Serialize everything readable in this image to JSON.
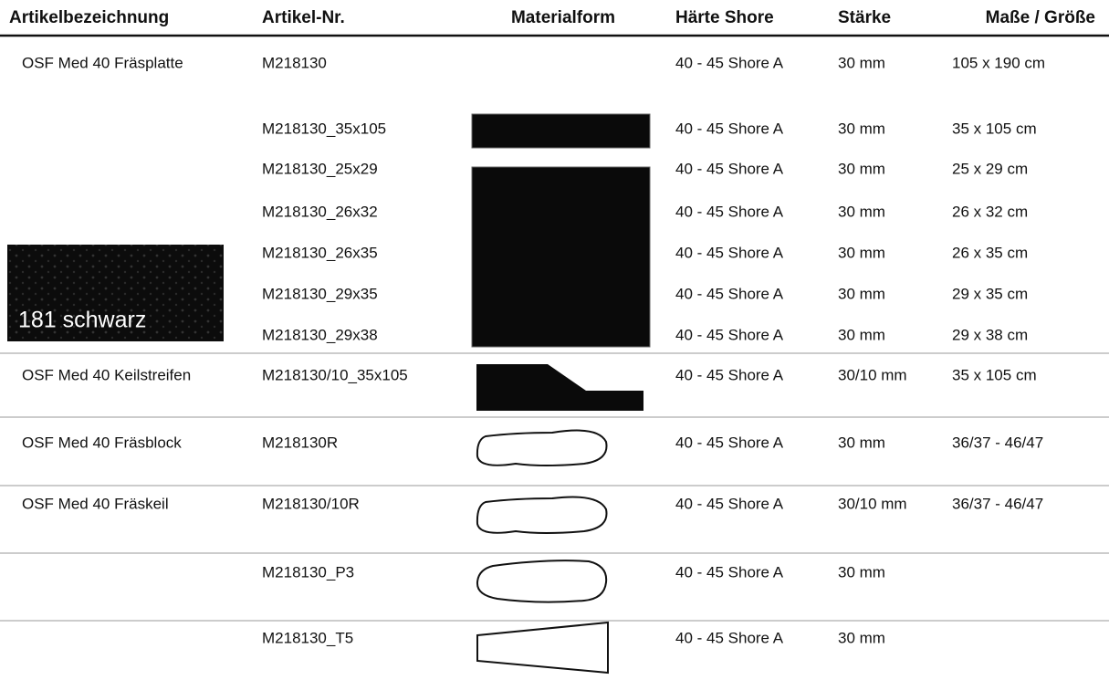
{
  "header": {
    "columns": [
      "Artikelbezeichnung",
      "Artikel-Nr.",
      "Materialform",
      "Härte Shore",
      "Stärke",
      "Maße / Größe"
    ]
  },
  "swatch": {
    "label": "181 schwarz"
  },
  "table": {
    "rows": [
      {
        "name": "OSF Med 40 Fräsplatte",
        "number": "M218130",
        "hardness": "40 - 45 Shore A",
        "thickness": "30 mm",
        "size": "105 x 190 cm"
      },
      {
        "number": "M218130_35x105",
        "hardness": "40 - 45 Shore A",
        "thickness": "30 mm",
        "size": "35 x 105 cm"
      },
      {
        "number": "M218130_25x29",
        "hardness": "40 - 45 Shore A",
        "thickness": "30 mm",
        "size": "25 x 29 cm"
      },
      {
        "number": "M218130_26x32",
        "hardness": "40 - 45 Shore A",
        "thickness": "30 mm",
        "size": "26 x 32 cm"
      },
      {
        "number": "M218130_26x35",
        "hardness": "40 - 45 Shore A",
        "thickness": "30 mm",
        "size": "26 x 35 cm"
      },
      {
        "number": "M218130_29x35",
        "hardness": "40 - 45 Shore A",
        "thickness": "30 mm",
        "size": "29 x 35 cm"
      },
      {
        "number": "M218130_29x38",
        "hardness": "40 - 45 Shore A",
        "thickness": "30 mm",
        "size": "29 x 38 cm"
      },
      {
        "name": "OSF Med 40 Keilstreifen",
        "number": "M218130/10_35x105",
        "hardness": "40 - 45 Shore A",
        "thickness": "30/10 mm",
        "size": "35 x 105 cm"
      },
      {
        "name": "OSF Med 40 Fräsblock",
        "number": "M218130R",
        "hardness": "40 - 45 Shore A",
        "thickness": "30 mm",
        "size": "36/37 - 46/47"
      },
      {
        "name": "OSF Med 40 Fräskeil",
        "number": "M218130/10R",
        "hardness": "40 - 45 Shore A",
        "thickness": "30/10 mm",
        "size": "36/37 - 46/47"
      },
      {
        "number": "M218130_P3",
        "hardness": "40 - 45 Shore A",
        "thickness": "30 mm"
      },
      {
        "number": "M218130_T5",
        "hardness": "40 - 45 Shore A",
        "thickness": "30 mm"
      }
    ]
  }
}
